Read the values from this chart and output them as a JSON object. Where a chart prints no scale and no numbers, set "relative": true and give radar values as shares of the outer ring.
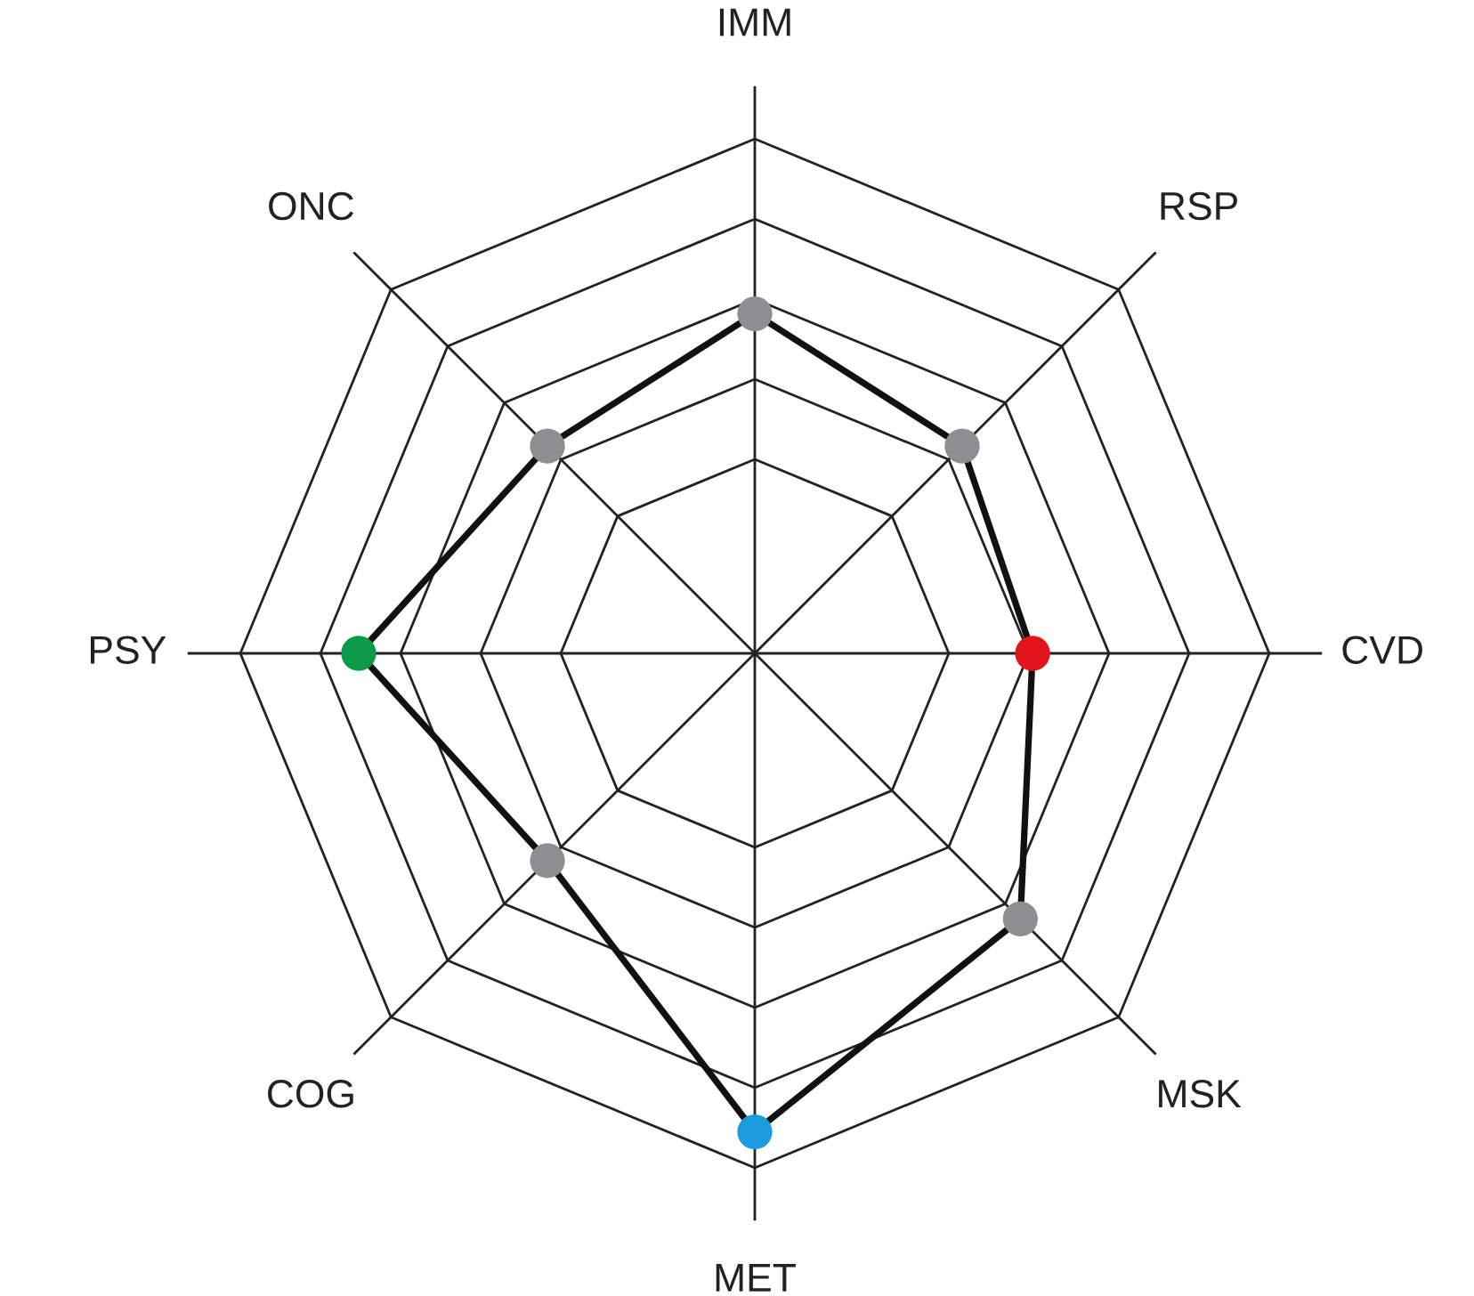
{
  "chart_data": {
    "type": "radar",
    "relative": true,
    "grid": true,
    "marker": "circle",
    "categories": [
      "IMM",
      "RSP",
      "CVD",
      "MSK",
      "MET",
      "COG",
      "PSY",
      "ONC"
    ],
    "series": [
      {
        "color": "#111111",
        "values": [
          0.66,
          0.57,
          0.54,
          0.73,
          0.93,
          0.57,
          0.77,
          0.57
        ],
        "colors": [
          "#8c8e91",
          "#8c8e91",
          "#e3141b",
          "#8c8e91",
          "#1c9be0",
          "#8c8e91",
          "#0a9a48",
          "#8c8e91"
        ]
      }
    ]
  }
}
